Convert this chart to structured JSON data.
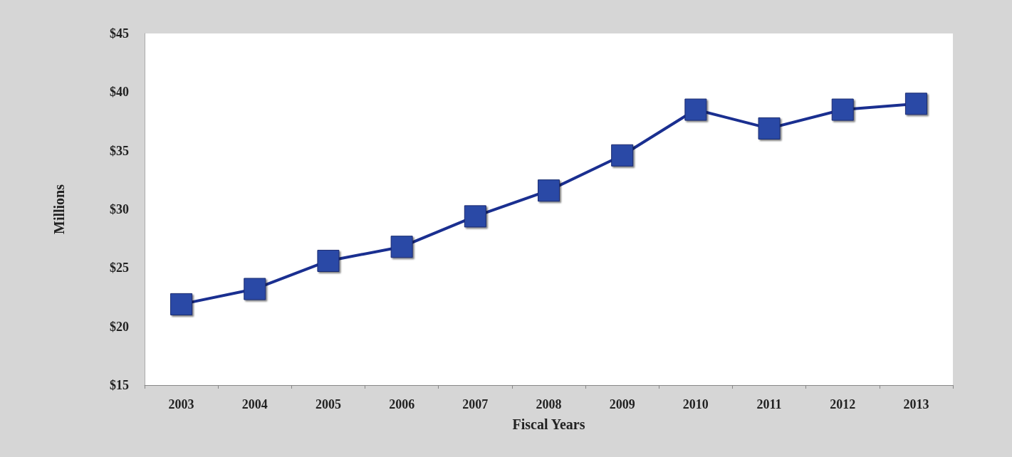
{
  "chart_data": {
    "type": "line",
    "xlabel": "Fiscal Years",
    "ylabel": "Millions",
    "categories": [
      "2003",
      "2004",
      "2005",
      "2006",
      "2007",
      "2008",
      "2009",
      "2010",
      "2011",
      "2012",
      "2013"
    ],
    "series": [
      {
        "color": "#2b4aa6",
        "values": [
          21.9,
          23.2,
          25.6,
          26.8,
          29.4,
          31.6,
          34.6,
          38.5,
          36.9,
          38.5,
          39.0
        ]
      }
    ],
    "ylim": [
      15,
      45
    ],
    "yticks": [
      {
        "value": 15,
        "label": "$15"
      },
      {
        "value": 20,
        "label": "$20"
      },
      {
        "value": 25,
        "label": "$25"
      },
      {
        "value": 30,
        "label": "$30"
      },
      {
        "value": 35,
        "label": "$35"
      },
      {
        "value": 40,
        "label": "$40"
      },
      {
        "value": 45,
        "label": "$45"
      }
    ],
    "grid": false,
    "marker": "square",
    "line_style": "solid"
  }
}
